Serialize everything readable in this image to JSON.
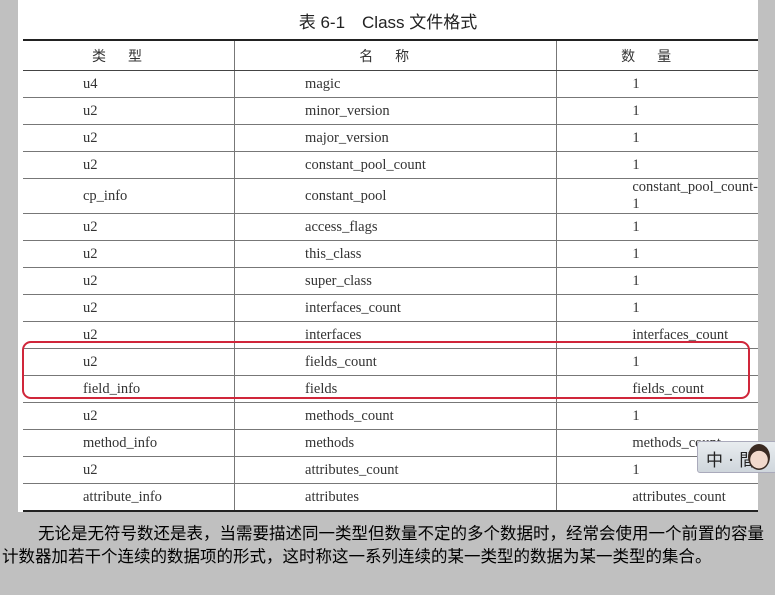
{
  "title": "表 6-1　Class 文件格式",
  "columns": [
    "类型",
    "名称",
    "数量"
  ],
  "rows": [
    [
      "u4",
      "magic",
      "1"
    ],
    [
      "u2",
      "minor_version",
      "1"
    ],
    [
      "u2",
      "major_version",
      "1"
    ],
    [
      "u2",
      "constant_pool_count",
      "1"
    ],
    [
      "cp_info",
      "constant_pool",
      "constant_pool_count-1"
    ],
    [
      "u2",
      "access_flags",
      "1"
    ],
    [
      "u2",
      "this_class",
      "1"
    ],
    [
      "u2",
      "super_class",
      "1"
    ],
    [
      "u2",
      "interfaces_count",
      "1"
    ],
    [
      "u2",
      "interfaces",
      "interfaces_count"
    ],
    [
      "u2",
      "fields_count",
      "1"
    ],
    [
      "field_info",
      "fields",
      "fields_count"
    ],
    [
      "u2",
      "methods_count",
      "1"
    ],
    [
      "method_info",
      "methods",
      "methods_count"
    ],
    [
      "u2",
      "attributes_count",
      "1"
    ],
    [
      "attribute_info",
      "attributes",
      "attributes_count"
    ]
  ],
  "highlight_color": "#d0263a",
  "watermark": "中 · 間",
  "caption": "无论是无符号数还是表，当需要描述同一类型但数量不定的多个数据时，经常会使用一个前置的容量计数器加若干个连续的数据项的形式，这时称这一系列连续的某一类型的数据为某一类型的集合。"
}
